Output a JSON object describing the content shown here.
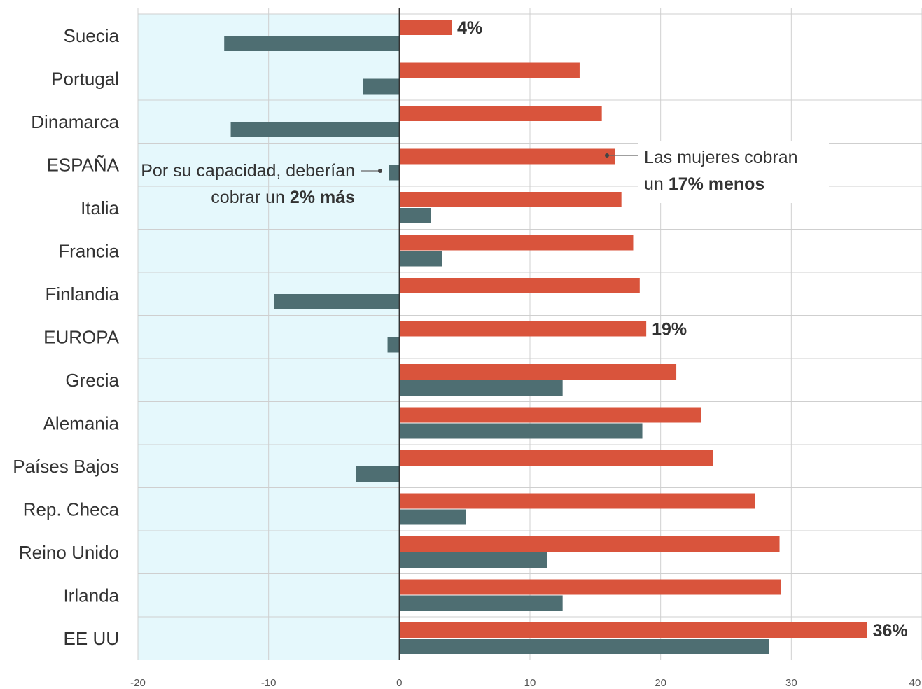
{
  "chart_data": {
    "type": "bar",
    "orientation": "horizontal",
    "categories": [
      "Suecia",
      "Portugal",
      "Dinamarca",
      "ESPAÑA",
      "Italia",
      "Francia",
      "Finlandia",
      "EUROPA",
      "Grecia",
      "Alemania",
      "Países Bajos",
      "Rep. Checa",
      "Reino Unido",
      "Irlanda",
      "EE UU"
    ],
    "series": [
      {
        "color": "#d9543c",
        "values": [
          4,
          13.8,
          15.5,
          16.5,
          17,
          17.9,
          18.4,
          18.9,
          21.2,
          23.1,
          24,
          27.2,
          29.1,
          29.2,
          35.8
        ]
      },
      {
        "color": "#4e6e72",
        "values": [
          -13.4,
          -2.8,
          -12.9,
          -0.8,
          2.4,
          3.3,
          -9.6,
          -0.9,
          12.5,
          18.6,
          -3.3,
          5.1,
          11.3,
          12.5,
          28.3
        ]
      }
    ],
    "xlim": [
      -20,
      40
    ],
    "xticks": [
      "-20",
      "-10",
      "0",
      "10",
      "20",
      "30",
      "40"
    ],
    "data_labels": [
      {
        "category": "Suecia",
        "text": "4%"
      },
      {
        "category": "EUROPA",
        "text": "19%"
      },
      {
        "category": "EE UU",
        "text": "36%"
      }
    ],
    "annotations": {
      "left": {
        "line1": "Por su capacidad, deberían",
        "line2_prefix": "cobrar un",
        "line2_bold": "2% más"
      },
      "right": {
        "line1": "Las mujeres cobran",
        "line2_prefix": "un",
        "line2_bold": "17% menos"
      }
    },
    "shaded_region": {
      "from": -20,
      "to": 0,
      "color": "#e5f8fc"
    },
    "grid": true
  }
}
